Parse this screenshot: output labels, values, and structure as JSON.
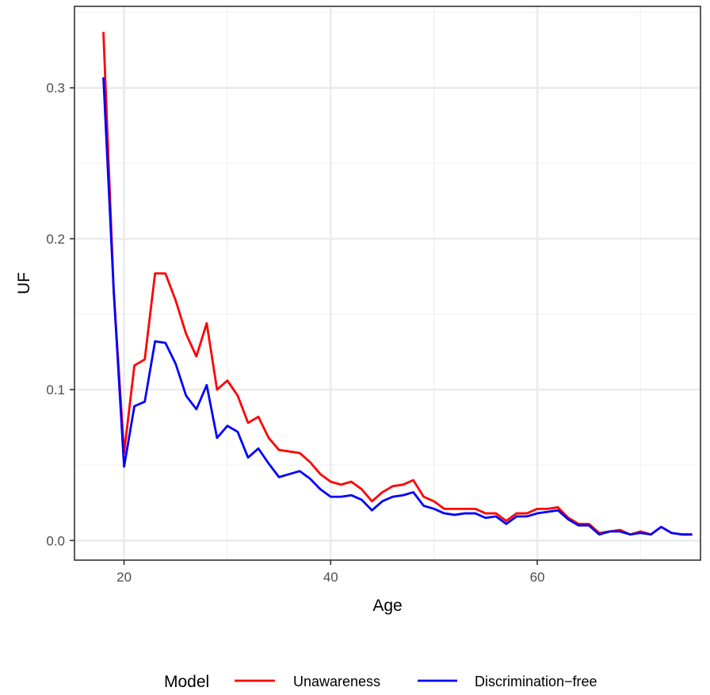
{
  "chart_data": {
    "type": "line",
    "xlabel": "Age",
    "ylabel": "UF",
    "xlim": [
      15.2,
      75.8
    ],
    "ylim": [
      -0.013,
      0.354
    ],
    "x_ticks": [
      20,
      40,
      60
    ],
    "y_ticks": [
      0.0,
      0.1,
      0.2,
      0.3
    ],
    "x_tick_labels": [
      "20",
      "40",
      "60"
    ],
    "y_tick_labels": [
      "0.0",
      "0.1",
      "0.2",
      "0.3"
    ],
    "grid": true,
    "legend": {
      "title": "Model",
      "position": "bottom"
    },
    "x": [
      18,
      19,
      20,
      21,
      22,
      23,
      24,
      25,
      26,
      27,
      28,
      29,
      30,
      31,
      32,
      33,
      34,
      35,
      36,
      37,
      38,
      39,
      40,
      41,
      42,
      43,
      44,
      45,
      46,
      47,
      48,
      49,
      50,
      51,
      52,
      53,
      54,
      55,
      56,
      57,
      58,
      59,
      60,
      61,
      62,
      63,
      64,
      65,
      66,
      67,
      68,
      69,
      70,
      71,
      72,
      73,
      74,
      75
    ],
    "series": [
      {
        "name": "Unawareness",
        "color": "#ff0000",
        "values": [
          0.337,
          0.165,
          0.058,
          0.116,
          0.12,
          0.177,
          0.177,
          0.159,
          0.137,
          0.122,
          0.144,
          0.1,
          0.106,
          0.096,
          0.078,
          0.082,
          0.068,
          0.06,
          0.059,
          0.058,
          0.052,
          0.044,
          0.039,
          0.037,
          0.039,
          0.034,
          0.026,
          0.032,
          0.036,
          0.037,
          0.04,
          0.029,
          0.026,
          0.021,
          0.021,
          0.021,
          0.021,
          0.018,
          0.018,
          0.013,
          0.018,
          0.018,
          0.021,
          0.021,
          0.022,
          0.015,
          0.011,
          0.011,
          0.005,
          0.006,
          0.007,
          0.004,
          0.006,
          0.004,
          0.009,
          0.005,
          0.004,
          0.004
        ]
      },
      {
        "name": "Discrimination−free",
        "color": "#0000ff",
        "values": [
          0.307,
          0.165,
          0.049,
          0.089,
          0.092,
          0.132,
          0.131,
          0.117,
          0.096,
          0.087,
          0.103,
          0.068,
          0.076,
          0.072,
          0.055,
          0.061,
          0.051,
          0.042,
          0.044,
          0.046,
          0.041,
          0.034,
          0.029,
          0.029,
          0.03,
          0.027,
          0.02,
          0.026,
          0.029,
          0.03,
          0.032,
          0.023,
          0.021,
          0.018,
          0.017,
          0.018,
          0.018,
          0.015,
          0.016,
          0.011,
          0.016,
          0.016,
          0.018,
          0.019,
          0.02,
          0.014,
          0.01,
          0.01,
          0.004,
          0.006,
          0.006,
          0.004,
          0.005,
          0.004,
          0.009,
          0.005,
          0.004,
          0.004
        ]
      }
    ]
  }
}
